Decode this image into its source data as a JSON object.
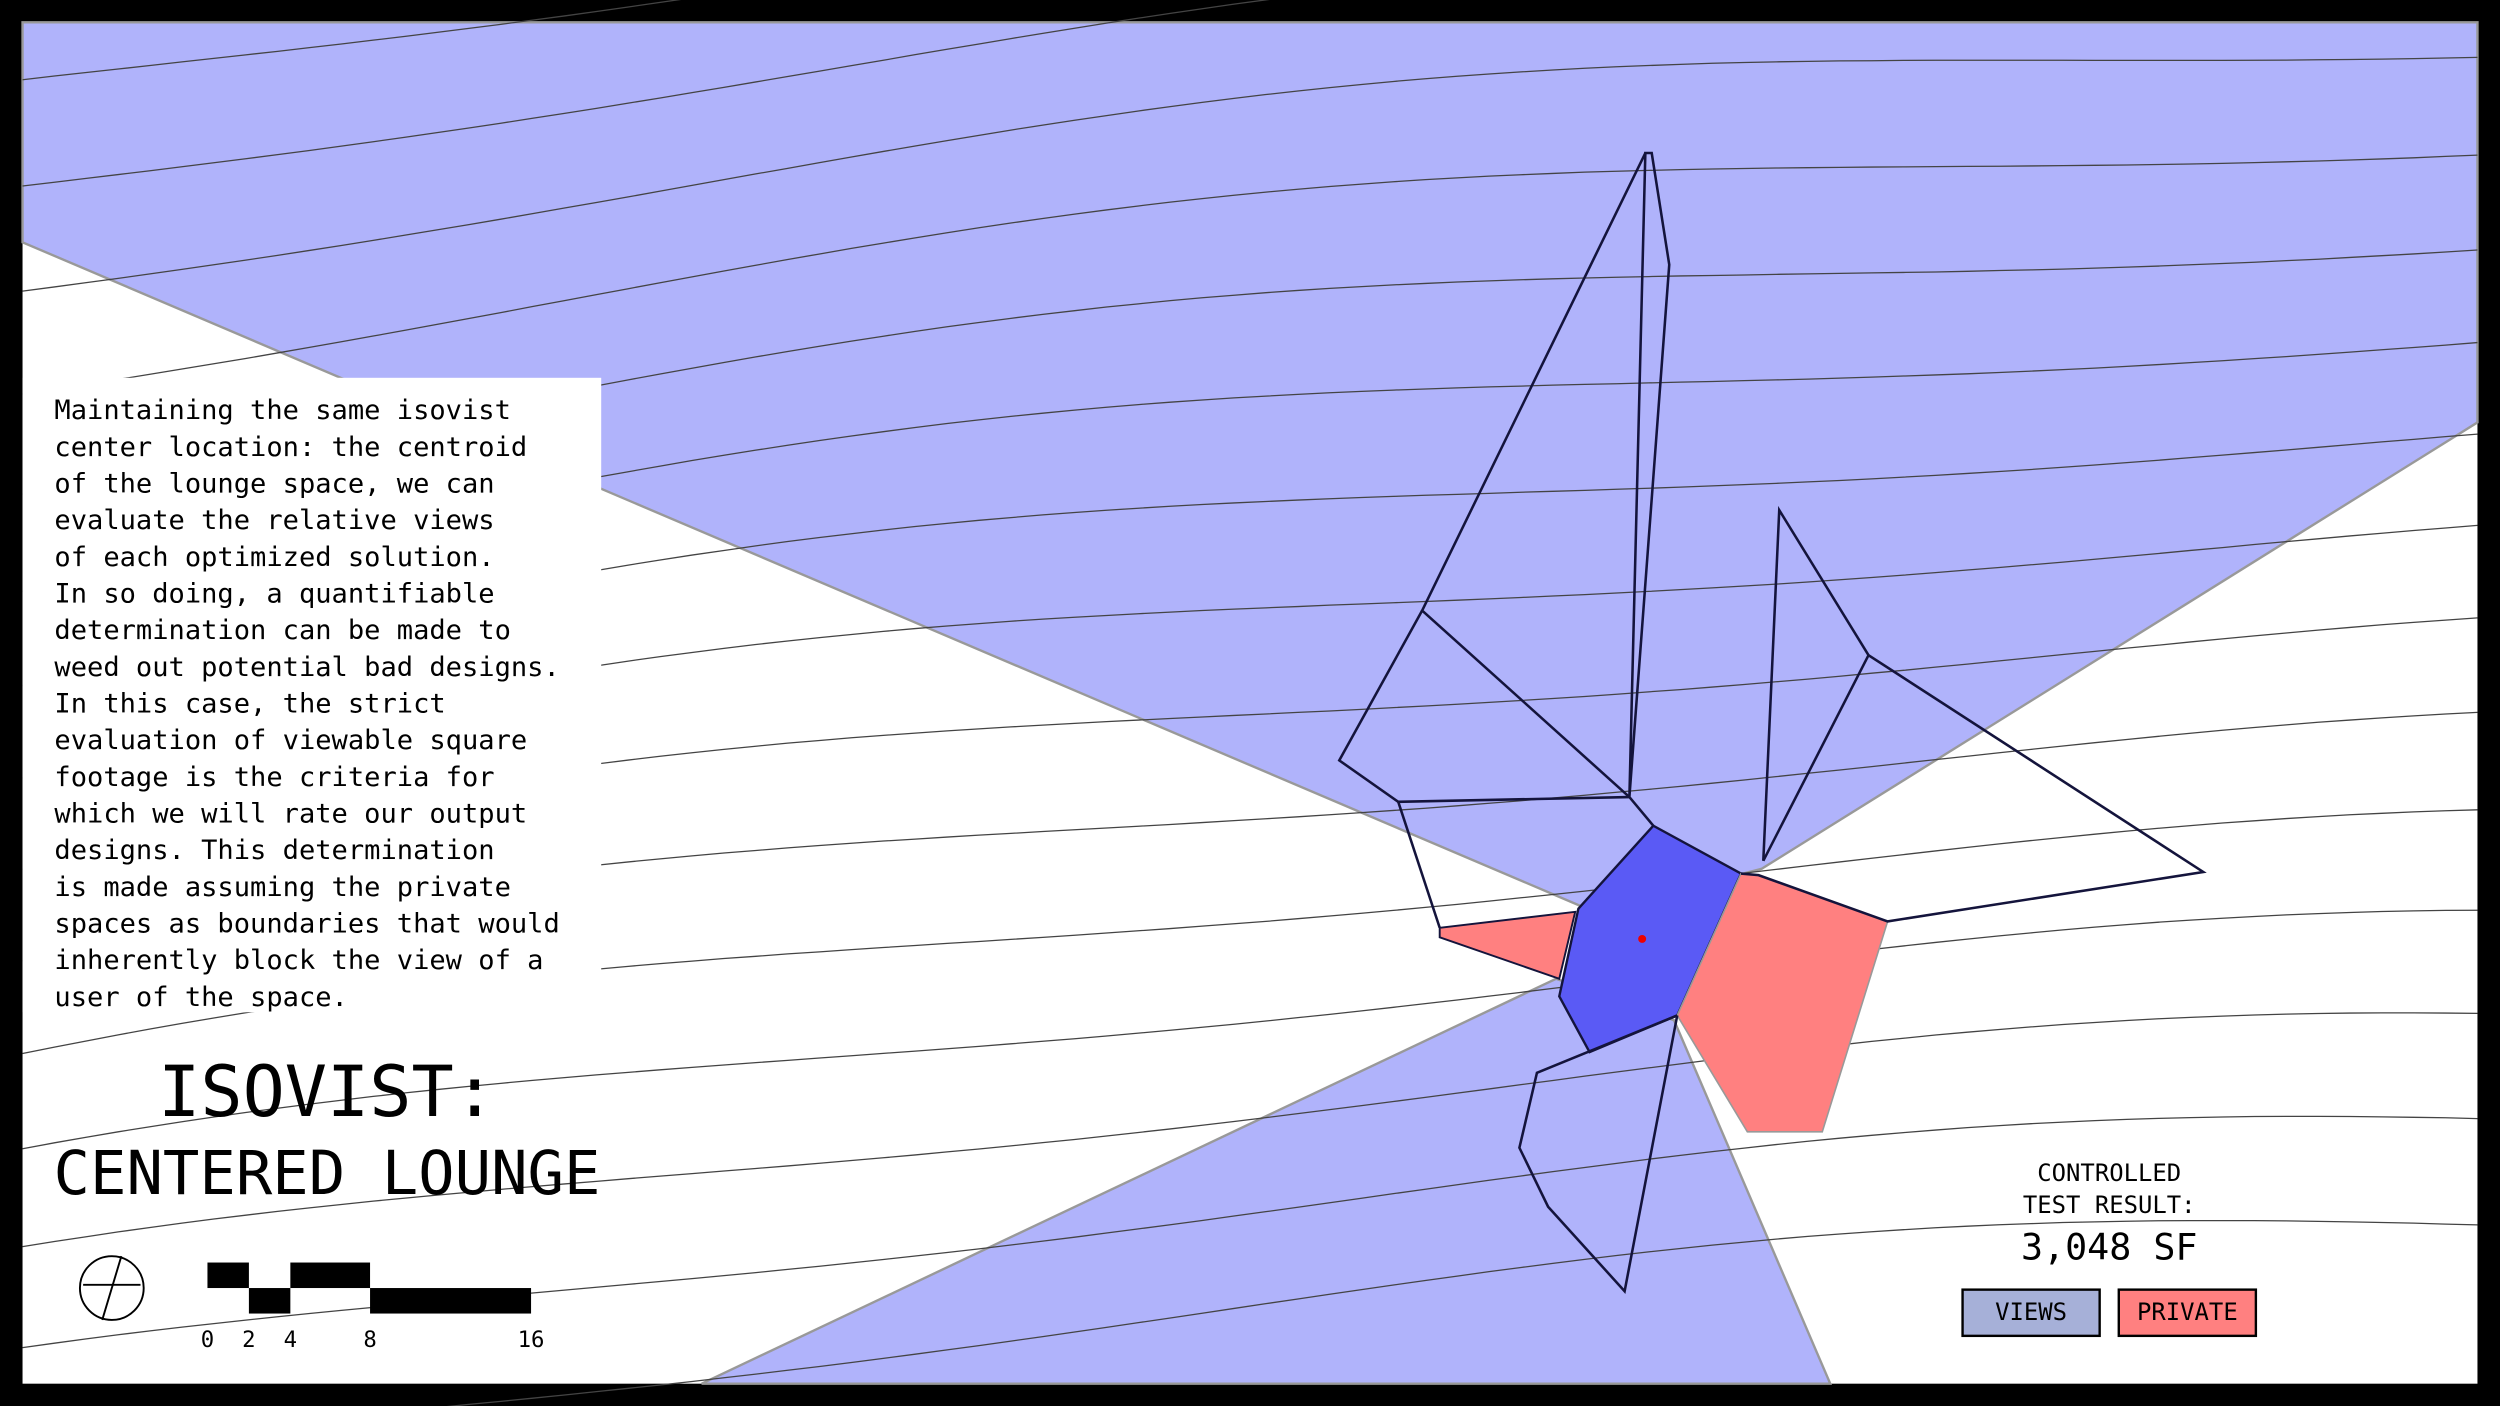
{
  "description": {
    "lines": [
      "Maintaining the same isovist",
      "center location: the centroid",
      "of the lounge space, we can",
      "evaluate the relative views",
      "of each optimized solution.",
      "In so doing, a quantifiable",
      "determination can be made to",
      "weed out potential bad designs.",
      "In this case, the strict",
      "evaluation of viewable square",
      "footage is the criteria for",
      "which we will rate our output",
      "designs. This determination",
      "is made assuming the private",
      "spaces as boundaries that would",
      "inherently block the view of a",
      "user of the space."
    ]
  },
  "header": {
    "title": "ISOVIST:",
    "subtitle": "CENTERED LOUNGE"
  },
  "scale_bar": {
    "labels": [
      0,
      2,
      4,
      8,
      16
    ]
  },
  "result": {
    "label_line1": "CONTROLLED",
    "label_line2": "TEST RESULT:",
    "value": "3,048 SF"
  },
  "legend": {
    "items": [
      "VIEWS",
      "PRIVATE"
    ]
  }
}
